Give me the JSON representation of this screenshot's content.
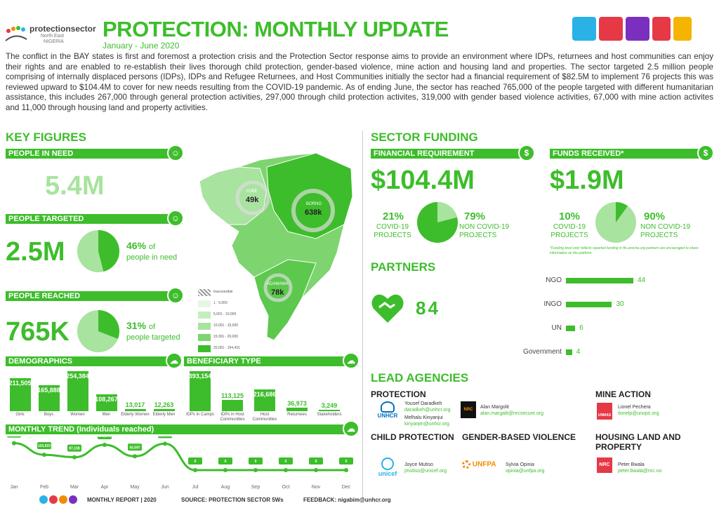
{
  "header": {
    "logo_text": "protectionsector",
    "logo_sub": "North East",
    "logo_sub2": "NIGERIA",
    "title": "PROTECTION: MONTHLY UPDATE",
    "subtitle": "January - June 2020",
    "intro": "The conflict in the BAY states is first and foremost a protection crisis and the Protection Sector response aims to provide an environment where IDPs, returnees and host communities can enjoy their rights and are enabled to re-establish their lives thorough child protection, gender-based violence, mine action and housing land and properties. The sector targeted 2.5 million people comprising of internally displaced persons (IDPs), IDPs and Refugee Returnees, and Host Communities initially the sector had a financial requirement of $82.5M to implement 76 projects this was reviewed upward to $104.4M to cover for new needs resulting from the COVID-19 pandemic. As of ending June, the sector has reached 765,000 of the people targeted with different humanitarian assistance, this includes 267,000 through general protection activities, 297,000 through child protection activites, 319,000 with gender based violence activities, 67,000 with mine action activites and 11,000 through housing land and property activities."
  },
  "key_figures": {
    "title": "KEY FIGURES",
    "people_in_need_label": "PEOPLE IN NEED",
    "people_in_need_value": "5.4M",
    "people_targeted_label": "PEOPLE TARGETED",
    "people_targeted_value": "2.5M",
    "targeted_pct": "46%",
    "targeted_pct_of": "of",
    "targeted_pct_sub": "people in need",
    "targeted_fraction": 0.46,
    "people_reached_label": "PEOPLE REACHED",
    "people_reached_value": "765K",
    "reached_pct": "31%",
    "reached_pct_of": "of",
    "reached_pct_sub": "people targeted",
    "reached_fraction": 0.31
  },
  "map": {
    "yobe_label": "YOBE",
    "yobe_value": "49k",
    "borno_label": "BORNO",
    "borno_value": "638k",
    "adamawa_label": "ADAMAWA",
    "adamawa_value": "78k",
    "legend": [
      "Inaccessible",
      "1 - 5,000",
      "5,001 - 10,000",
      "10,001 - 15,000",
      "15,001 - 20,000",
      "20,001 - 164,431"
    ]
  },
  "demographics": {
    "title": "DEMOGRAPHICS",
    "items": [
      {
        "label": "Girls",
        "value": "211,505",
        "num": 211505
      },
      {
        "label": "Boys",
        "value": "165,888",
        "num": 165888
      },
      {
        "label": "Women",
        "value": "254,384",
        "num": 254384
      },
      {
        "label": "Men",
        "value": "108,267",
        "num": 108267
      },
      {
        "label": "Elderly Women",
        "value": "13,017",
        "num": 13017
      },
      {
        "label": "Elderly Men",
        "value": "12,263",
        "num": 12263
      }
    ]
  },
  "beneficiary": {
    "title": "BENEFICIARY TYPE",
    "items": [
      {
        "label": "IDPs in Camps",
        "value": "393,154",
        "num": 393154
      },
      {
        "label": "IDPs in Host Communities",
        "value": "113,125",
        "num": 113125
      },
      {
        "label": "Host Communities",
        "value": "216,686",
        "num": 216686
      },
      {
        "label": "Returnees",
        "value": "36,973",
        "num": 36973
      },
      {
        "label": "Stakeholders",
        "value": "3,249",
        "num": 3249
      }
    ]
  },
  "trend": {
    "title": "MONTHLY TREND (Individuals reached)",
    "months": [
      "Jan",
      "Feb",
      "Mar",
      "Apr",
      "May",
      "Jun",
      "Jul",
      "Aug",
      "Sep",
      "Oct",
      "Nov",
      "Dec"
    ],
    "values": [
      "182,026",
      "103,923",
      "87,108",
      "171,278",
      "93,597",
      "178,434",
      "0",
      "0",
      "0",
      "0",
      "0",
      "0"
    ],
    "nums": [
      182026,
      103923,
      87108,
      171278,
      93597,
      178434,
      0,
      0,
      0,
      0,
      0,
      0
    ]
  },
  "funding": {
    "title": "SECTOR FUNDING",
    "req_label": "FINANCIAL REQUIREMENT",
    "req_value": "$104.4M",
    "req_pct_a": "21%",
    "req_lab_a": "COVID-19 PROJECTS",
    "req_pct_b": "79%",
    "req_lab_b": "NON COVID-19 PROJECTS",
    "req_fraction": 0.21,
    "rec_label": "FUNDS RECEIVED*",
    "rec_value": "$1.9M",
    "rec_pct_a": "10%",
    "rec_lab_a": "COVID-19 PROJECTS",
    "rec_pct_b": "90%",
    "rec_lab_b": "NON COVID-19 PROJECTS",
    "rec_fraction": 0.1,
    "note": "*Funding level only reflects reported funding in fts.unocha.org partners are encouraged to share information on the platform."
  },
  "partners": {
    "title": "PARTNERS",
    "count": "84",
    "items": [
      {
        "label": "NGO",
        "value": "44",
        "num": 44
      },
      {
        "label": "INGO",
        "value": "30",
        "num": 30
      },
      {
        "label": "UN",
        "value": "6",
        "num": 6
      },
      {
        "label": "Government",
        "value": "4",
        "num": 4
      }
    ]
  },
  "lead_agencies": {
    "title": "LEAD AGENCIES",
    "protection": {
      "head": "PROTECTION",
      "p1_name": "Yousef Daradkeh",
      "p1_mail": "daradkeh@unhcr.org",
      "p2_name": "Melhalu Kinyanjui",
      "p2_mail": "kinyanjm@unhcr.org",
      "org1": "UNHCR",
      "p3_name": "Alan Margolit",
      "p3_mail": "alan.margalit@nrcsecure.org",
      "org2": "NRC"
    },
    "mine_action": {
      "head": "MINE ACTION",
      "name": "Lionel Pechera",
      "mail": "lionelp@unops.org",
      "org": "UNMAS"
    },
    "child_protection": {
      "head": "CHILD PROTECTION",
      "name": "Joyce Mutiso",
      "mail": "jmutiso@unicef.org",
      "org": "unicef"
    },
    "gbv": {
      "head": "GENDER-BASED VIOLENCE",
      "name": "Sylvia Opinia",
      "mail": "opinia@unfpa.org",
      "org": "UNFPA"
    },
    "hlp": {
      "head": "HOUSING LAND AND PROPERTY",
      "name": "Peter Bwala",
      "mail": "peter.bwala@nrc.no",
      "org": "NRC"
    }
  },
  "footer": {
    "report": "MONTHLY REPORT | 2020",
    "source": "SOURCE: PROTECTION SECTOR 5Ws",
    "feedback": "FEEDBACK: nigabim@unhcr.org"
  },
  "colors": {
    "accent": "#3dbd2b",
    "light": "#a8e39f",
    "dot1": "#2ab2e6",
    "dot2": "#e63946",
    "dot3": "#f08c00",
    "dot4": "#7b2fbf"
  },
  "icons": [
    "people-icon",
    "money-bag-icon",
    "handshake-icon",
    "cloud-icon"
  ]
}
